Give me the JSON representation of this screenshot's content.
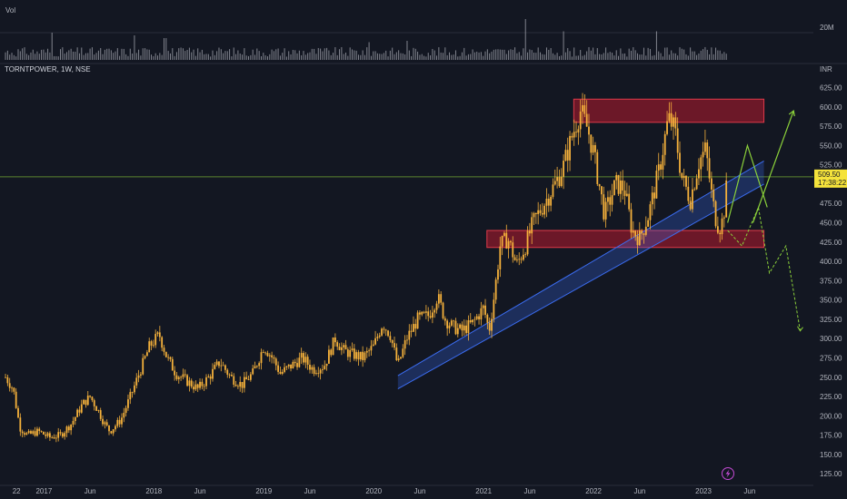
{
  "header": {
    "volume_label": "Vol",
    "symbol_label": "TORNTPOWER, 1W, NSE",
    "currency_label": "INR"
  },
  "volume_pane": {
    "scale_label": "20M"
  },
  "last_price": {
    "price": "509.50",
    "countdown": "17:38:22"
  },
  "event_icon": "lightning-bolt-icon",
  "colors": {
    "background": "#131722",
    "candle": "#f5b13b",
    "zone_fill": "#8b1a2b",
    "zone_border": "#e03a4a",
    "channel": "#3b6cf0",
    "projection": "#8bd13a",
    "last_price_tag": "#f5e33b",
    "volume_bar": "#9598a1"
  },
  "chart_data": {
    "type": "candlestick",
    "title": "TORNTPOWER, 1W, NSE",
    "currency": "INR",
    "ylim": [
      110,
      635
    ],
    "y_ticks": [
      "625.00",
      "600.00",
      "575.00",
      "550.00",
      "525.00",
      "500.00",
      "475.00",
      "450.00",
      "425.00",
      "400.00",
      "375.00",
      "350.00",
      "325.00",
      "300.00",
      "275.00",
      "250.00",
      "225.00",
      "200.00",
      "175.00",
      "150.00",
      "125.00"
    ],
    "x_ticks": [
      "22",
      "2017",
      "Jun",
      "2018",
      "Jun",
      "2019",
      "Jun",
      "2020",
      "Jun",
      "2021",
      "Jun",
      "2022",
      "Jun",
      "2023",
      "Jun"
    ],
    "x_tick_years": [
      2016.75,
      2017.0,
      2017.42,
      2018.0,
      2018.42,
      2019.0,
      2019.42,
      2020.0,
      2020.42,
      2021.0,
      2021.42,
      2022.0,
      2022.42,
      2023.0,
      2023.42
    ],
    "price_path": [
      [
        2016.65,
        250
      ],
      [
        2016.72,
        235
      ],
      [
        2016.78,
        185
      ],
      [
        2016.85,
        175
      ],
      [
        2016.95,
        180
      ],
      [
        2017.05,
        172
      ],
      [
        2017.15,
        175
      ],
      [
        2017.25,
        190
      ],
      [
        2017.35,
        215
      ],
      [
        2017.42,
        225
      ],
      [
        2017.5,
        205
      ],
      [
        2017.55,
        190
      ],
      [
        2017.6,
        180
      ],
      [
        2017.7,
        195
      ],
      [
        2017.8,
        230
      ],
      [
        2017.88,
        260
      ],
      [
        2017.96,
        290
      ],
      [
        2018.05,
        305
      ],
      [
        2018.12,
        275
      ],
      [
        2018.2,
        255
      ],
      [
        2018.3,
        245
      ],
      [
        2018.4,
        235
      ],
      [
        2018.5,
        250
      ],
      [
        2018.6,
        270
      ],
      [
        2018.7,
        250
      ],
      [
        2018.8,
        240
      ],
      [
        2018.9,
        255
      ],
      [
        2019.0,
        290
      ],
      [
        2019.08,
        275
      ],
      [
        2019.15,
        255
      ],
      [
        2019.25,
        265
      ],
      [
        2019.35,
        275
      ],
      [
        2019.45,
        260
      ],
      [
        2019.55,
        265
      ],
      [
        2019.65,
        300
      ],
      [
        2019.72,
        285
      ],
      [
        2019.8,
        280
      ],
      [
        2019.9,
        275
      ],
      [
        2020.0,
        290
      ],
      [
        2020.08,
        320
      ],
      [
        2020.15,
        305
      ],
      [
        2020.22,
        265
      ],
      [
        2020.3,
        300
      ],
      [
        2020.4,
        325
      ],
      [
        2020.5,
        330
      ],
      [
        2020.58,
        355
      ],
      [
        2020.65,
        325
      ],
      [
        2020.72,
        315
      ],
      [
        2020.8,
        310
      ],
      [
        2020.9,
        320
      ],
      [
        2021.0,
        340
      ],
      [
        2021.05,
        310
      ],
      [
        2021.1,
        360
      ],
      [
        2021.15,
        420
      ],
      [
        2021.22,
        430
      ],
      [
        2021.3,
        395
      ],
      [
        2021.38,
        420
      ],
      [
        2021.45,
        450
      ],
      [
        2021.55,
        475
      ],
      [
        2021.65,
        500
      ],
      [
        2021.72,
        520
      ],
      [
        2021.8,
        560
      ],
      [
        2021.88,
        595
      ],
      [
        2021.95,
        570
      ],
      [
        2022.0,
        540
      ],
      [
        2022.05,
        500
      ],
      [
        2022.1,
        460
      ],
      [
        2022.15,
        480
      ],
      [
        2022.2,
        500
      ],
      [
        2022.28,
        495
      ],
      [
        2022.35,
        440
      ],
      [
        2022.42,
        430
      ],
      [
        2022.5,
        460
      ],
      [
        2022.6,
        520
      ],
      [
        2022.68,
        585
      ],
      [
        2022.74,
        570
      ],
      [
        2022.8,
        510
      ],
      [
        2022.88,
        480
      ],
      [
        2022.96,
        530
      ],
      [
        2023.02,
        545
      ],
      [
        2023.08,
        480
      ],
      [
        2023.12,
        450
      ],
      [
        2023.15,
        445
      ],
      [
        2023.18,
        455
      ],
      [
        2023.22,
        509.5
      ]
    ],
    "volume_spikes": [
      {
        "x": 2017.08,
        "v": 1.0
      },
      {
        "x": 2017.83,
        "v": 0.9
      },
      {
        "x": 2018.1,
        "v": 0.8
      },
      {
        "x": 2019.95,
        "v": 0.65
      },
      {
        "x": 2020.3,
        "v": 0.7
      },
      {
        "x": 2021.38,
        "v": 1.5
      },
      {
        "x": 2021.72,
        "v": 1.05
      },
      {
        "x": 2022.58,
        "v": 1.05
      },
      {
        "x": 2023.22,
        "v": 0.95
      }
    ],
    "annotations": {
      "resistance_zone": {
        "y_low": 580,
        "y_high": 610,
        "x_start": 2021.82,
        "x_end": 2023.55
      },
      "support_zone": {
        "y_low": 418,
        "y_high": 440,
        "x_start": 2021.03,
        "x_end": 2023.55
      },
      "channel_lower": [
        [
          2020.22,
          235
        ],
        [
          2023.55,
          500
        ]
      ],
      "channel_upper": [
        [
          2020.22,
          252
        ],
        [
          2023.55,
          530
        ]
      ],
      "last_price_line": 509.5,
      "bullish_path": [
        [
          2023.22,
          450
        ],
        [
          2023.4,
          550
        ],
        [
          2023.58,
          470
        ]
      ],
      "bullish_target": [
        [
          2023.45,
          450
        ],
        [
          2023.82,
          595
        ]
      ],
      "bearish_path": [
        [
          2023.22,
          440
        ],
        [
          2023.35,
          420
        ],
        [
          2023.5,
          470
        ],
        [
          2023.6,
          385
        ],
        [
          2023.75,
          420
        ],
        [
          2023.88,
          310
        ]
      ]
    }
  }
}
